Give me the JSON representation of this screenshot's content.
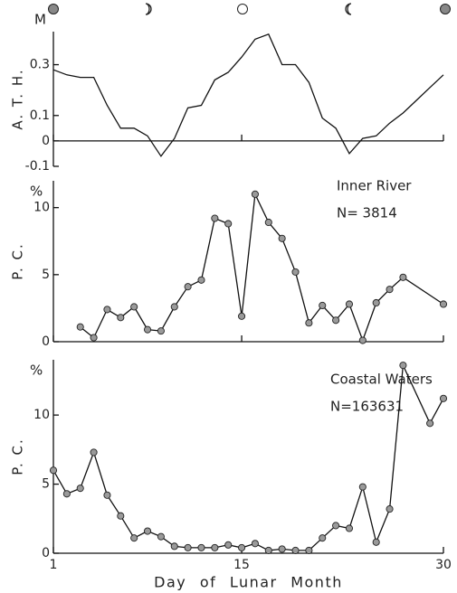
{
  "chart_data": [
    {
      "type": "line",
      "y_label": "A. T. H.",
      "unit": "M",
      "color": "#111",
      "markers": false,
      "x": [
        1,
        2,
        3,
        4,
        5,
        6,
        7,
        8,
        9,
        10,
        11,
        12,
        13,
        14,
        15,
        16,
        17,
        18,
        19,
        20,
        21,
        22,
        23,
        24,
        25,
        26,
        27,
        28,
        29,
        30
      ],
      "values": [
        0.28,
        0.26,
        0.25,
        0.25,
        0.14,
        0.05,
        0.05,
        0.02,
        -0.06,
        0.01,
        0.13,
        0.14,
        0.24,
        0.27,
        0.33,
        0.4,
        0.42,
        0.3,
        0.3,
        0.23,
        0.09,
        0.05,
        -0.05,
        0.01,
        0.02,
        0.07,
        0.11,
        0.16,
        0.21,
        0.26
      ],
      "xlim": [
        1,
        30
      ],
      "ylim": [
        -0.1,
        0.43
      ],
      "yticks": [
        0.3,
        0.1,
        0,
        -0.1
      ]
    },
    {
      "type": "line",
      "y_label": "P. C.",
      "unit": "%",
      "color": "#111",
      "markers": true,
      "marker_color": "#9a9a9a",
      "annotations": [
        "Inner River",
        "N= 3814"
      ],
      "x": [
        3,
        4,
        5,
        6,
        7,
        8,
        9,
        10,
        11,
        12,
        13,
        14,
        15,
        16,
        17,
        18,
        19,
        20,
        21,
        22,
        23,
        24,
        25,
        26,
        27,
        30
      ],
      "values": [
        1.1,
        0.3,
        2.4,
        1.8,
        2.6,
        0.9,
        0.8,
        2.6,
        4.1,
        4.6,
        9.2,
        8.8,
        1.9,
        11.0,
        8.9,
        7.7,
        5.2,
        1.4,
        2.7,
        1.6,
        2.8,
        0.1,
        2.9,
        3.9,
        4.8,
        2.8
      ],
      "xlim": [
        1,
        30
      ],
      "ylim": [
        0,
        12
      ],
      "yticks": [
        10,
        5,
        0
      ]
    },
    {
      "type": "line",
      "y_label": "P. C.",
      "unit": "%",
      "color": "#111",
      "markers": true,
      "marker_color": "#9a9a9a",
      "annotations": [
        "Coastal Waters",
        "N=163631"
      ],
      "x_label": "Day of Lunar Month",
      "x": [
        1,
        2,
        3,
        4,
        5,
        6,
        7,
        8,
        9,
        10,
        11,
        12,
        13,
        14,
        15,
        16,
        17,
        18,
        19,
        20,
        21,
        22,
        23,
        24,
        25,
        26,
        27,
        29,
        30
      ],
      "values": [
        6.0,
        4.3,
        4.7,
        7.3,
        4.2,
        2.7,
        1.1,
        1.6,
        1.2,
        0.5,
        0.4,
        0.4,
        0.4,
        0.6,
        0.4,
        0.7,
        0.2,
        0.3,
        0.2,
        0.2,
        1.1,
        2.0,
        1.8,
        4.8,
        0.8,
        3.2,
        13.6,
        9.4,
        11.2
      ],
      "xlim": [
        1,
        30
      ],
      "ylim": [
        0,
        14
      ],
      "yticks": [
        10,
        5,
        0
      ],
      "xticks": [
        1,
        15,
        30
      ]
    }
  ]
}
